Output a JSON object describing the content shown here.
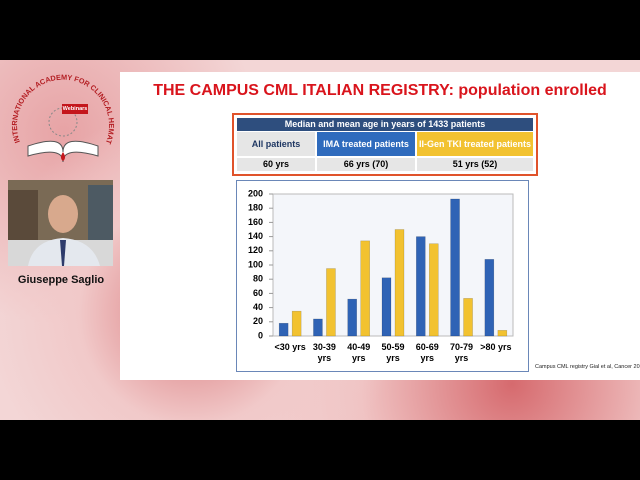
{
  "logo": {
    "arc_text": "INTERNATIONAL ACADEMY FOR CLINICAL HEMATOLOGY",
    "badge": "Webinars"
  },
  "speaker": {
    "name": "Giuseppe Saglio"
  },
  "slide": {
    "title": "THE CAMPUS CML ITALIAN REGISTRY: population enrolled",
    "table": {
      "caption": "Median and mean age  in years of 1433 patients",
      "columns": [
        "All patients",
        "IMA treated patients",
        "II-Gen TKI treated patients"
      ],
      "values": [
        "60 yrs",
        "66 yrs (70)",
        "51 yrs (52)"
      ]
    },
    "footnote": "Campus CML registry Gial et al, Cancer 20"
  },
  "chart_data": {
    "type": "bar",
    "categories": [
      "<30 yrs",
      "30-39 yrs",
      "40-49 yrs",
      "50-59 yrs",
      "60-69 yrs",
      "70-79 yrs",
      ">80 yrs"
    ],
    "series": [
      {
        "color": "#2f63b5",
        "values": [
          18,
          24,
          52,
          82,
          140,
          193,
          108
        ]
      },
      {
        "color": "#f2c230",
        "values": [
          35,
          95,
          134,
          150,
          130,
          53,
          8
        ]
      }
    ],
    "ylim": [
      0,
      200
    ],
    "yticks": [
      0,
      20,
      40,
      60,
      80,
      100,
      120,
      140,
      160,
      180,
      200
    ],
    "grid": false
  }
}
